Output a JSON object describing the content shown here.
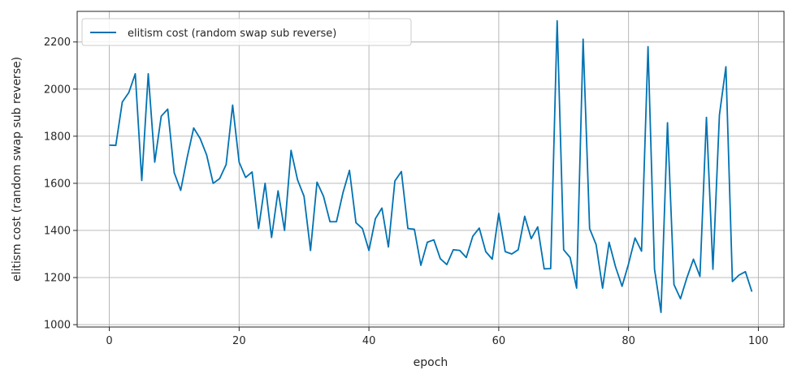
{
  "chart_data": {
    "type": "line",
    "xlabel": "epoch",
    "ylabel": "elitism cost (random swap sub reverse)",
    "xlim": [
      -4.95,
      103.95
    ],
    "ylim": [
      990,
      2330
    ],
    "xticks": [
      0,
      20,
      40,
      60,
      80,
      100
    ],
    "yticks": [
      1000,
      1200,
      1400,
      1600,
      1800,
      2000,
      2200
    ],
    "grid": true,
    "legend_position": "top-left",
    "series": [
      {
        "name": "elitism cost (random swap sub reverse)",
        "color": "#0072b2",
        "x": [
          0,
          1,
          2,
          3,
          4,
          5,
          6,
          7,
          8,
          9,
          10,
          11,
          12,
          13,
          14,
          15,
          16,
          17,
          18,
          19,
          20,
          21,
          22,
          23,
          24,
          25,
          26,
          27,
          28,
          29,
          30,
          31,
          32,
          33,
          34,
          35,
          36,
          37,
          38,
          39,
          40,
          41,
          42,
          43,
          44,
          45,
          46,
          47,
          48,
          49,
          50,
          51,
          52,
          53,
          54,
          55,
          56,
          57,
          58,
          59,
          60,
          61,
          62,
          63,
          64,
          65,
          66,
          67,
          68,
          69,
          70,
          71,
          72,
          73,
          74,
          75,
          76,
          77,
          78,
          79,
          80,
          81,
          82,
          83,
          84,
          85,
          86,
          87,
          88,
          89,
          90,
          91,
          92,
          93,
          94,
          95,
          96,
          97,
          98,
          99
        ],
        "values": [
          1762,
          1761,
          1945,
          1985,
          2065,
          1612,
          2065,
          1690,
          1885,
          1915,
          1645,
          1570,
          1710,
          1835,
          1790,
          1720,
          1600,
          1620,
          1680,
          1932,
          1690,
          1625,
          1648,
          1408,
          1600,
          1370,
          1568,
          1400,
          1740,
          1615,
          1545,
          1315,
          1605,
          1545,
          1437,
          1437,
          1560,
          1655,
          1433,
          1408,
          1315,
          1450,
          1495,
          1330,
          1610,
          1650,
          1408,
          1405,
          1252,
          1350,
          1360,
          1280,
          1255,
          1318,
          1315,
          1285,
          1375,
          1410,
          1310,
          1278,
          1472,
          1310,
          1300,
          1318,
          1460,
          1365,
          1415,
          1237,
          1238,
          2290,
          1318,
          1285,
          1155,
          2212,
          1408,
          1340,
          1155,
          1350,
          1245,
          1163,
          1258,
          1368,
          1312,
          2180,
          1235,
          1052,
          1857,
          1170,
          1110,
          1200,
          1278,
          1205,
          1880,
          1235,
          1890,
          2095,
          1183,
          1210,
          1225,
          1140
        ]
      }
    ]
  }
}
